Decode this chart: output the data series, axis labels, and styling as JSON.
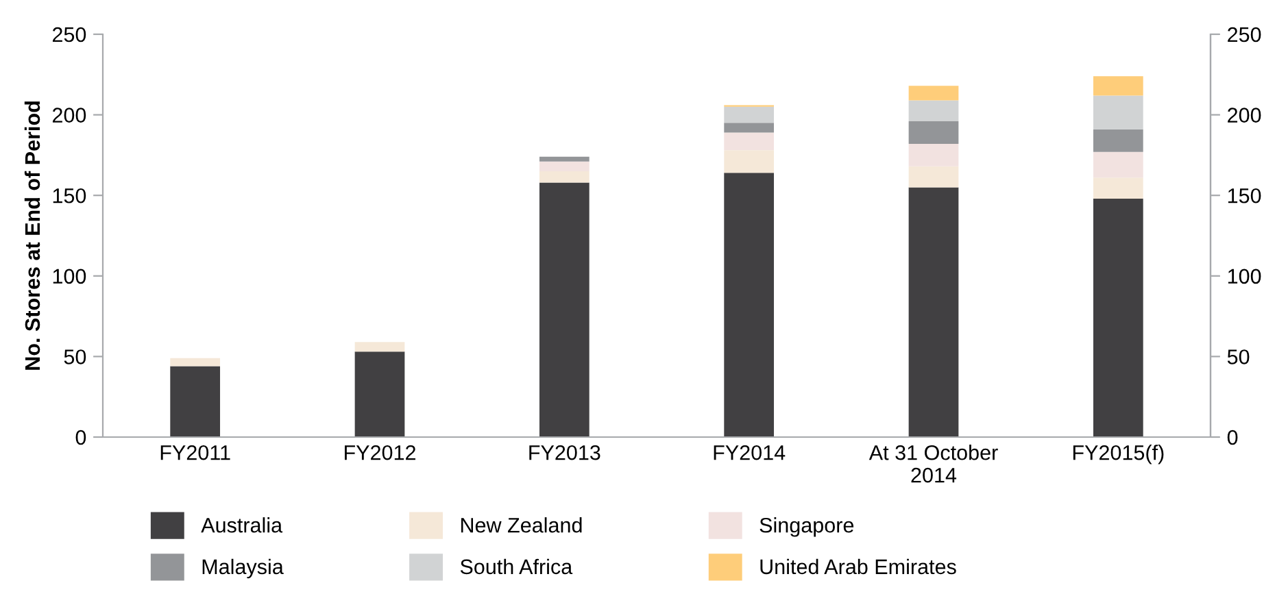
{
  "chart_data": {
    "type": "bar",
    "stacked": true,
    "ylabel": "No. Stores at End of Period",
    "categories": [
      "FY2011",
      "FY2012",
      "FY2013",
      "FY2014",
      "At 31 October\n2014",
      "FY2015(f)"
    ],
    "series": [
      {
        "name": "Australia",
        "color": "#414042",
        "values": [
          44,
          53,
          158,
          164,
          155,
          148
        ]
      },
      {
        "name": "New Zealand",
        "color": "#f5e8d8",
        "values": [
          5,
          6,
          7,
          14,
          13,
          13
        ]
      },
      {
        "name": "Singapore",
        "color": "#f2e2e0",
        "values": [
          null,
          null,
          6,
          11,
          14,
          16
        ]
      },
      {
        "name": "Malaysia",
        "color": "#939598",
        "values": [
          null,
          null,
          3,
          6,
          14,
          14
        ]
      },
      {
        "name": "South Africa",
        "color": "#d1d3d4",
        "values": [
          null,
          null,
          null,
          10,
          13,
          21
        ]
      },
      {
        "name": "United Arab Emirates",
        "color": "#fecd7a",
        "values": [
          null,
          null,
          null,
          1,
          9,
          12
        ]
      }
    ],
    "ylim": [
      0,
      250
    ],
    "yticks": [
      0,
      50,
      100,
      150,
      200,
      250
    ],
    "y2lim": [
      0,
      250
    ],
    "y2ticks": [
      0,
      50,
      100,
      150,
      200,
      250
    ],
    "grid": false,
    "legend": "bottom"
  }
}
